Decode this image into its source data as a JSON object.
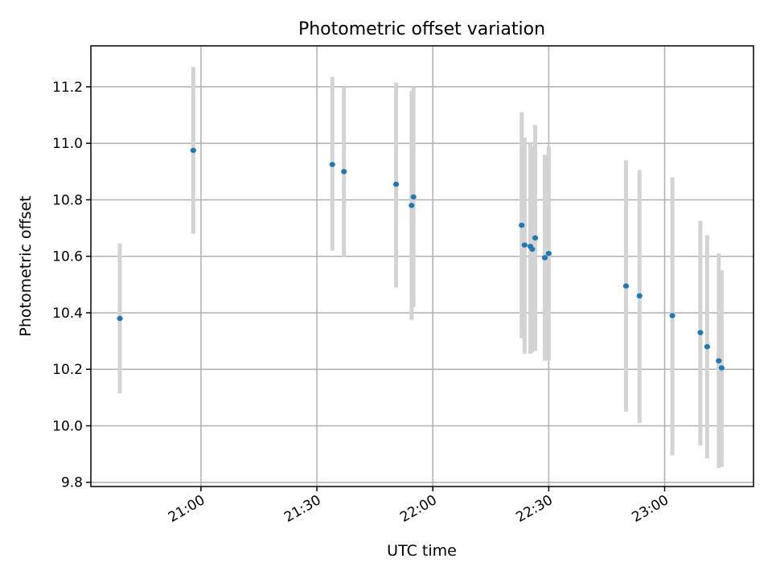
{
  "chart_data": {
    "type": "scatter",
    "title": "Photometric offset variation",
    "xlabel": "UTC time",
    "ylabel": "Photometric offset",
    "x_axis": {
      "type": "time",
      "range": [
        "20:31:30",
        "23:23:00"
      ],
      "ticks": [
        "21:00",
        "21:30",
        "22:00",
        "22:30",
        "23:00"
      ]
    },
    "y_axis": {
      "range": [
        9.785,
        11.345
      ],
      "ticks": [
        "9.8",
        "10.0",
        "10.2",
        "10.4",
        "10.6",
        "10.8",
        "11.0",
        "11.2"
      ]
    },
    "grid": true,
    "marker_color": "#1f77b4",
    "errorbar_color": "#d3d3d3",
    "points": [
      {
        "t": "20:39:00",
        "y": 10.38,
        "lo": 10.115,
        "hi": 10.645
      },
      {
        "t": "20:58:00",
        "y": 10.975,
        "lo": 10.68,
        "hi": 11.27
      },
      {
        "t": "21:34:00",
        "y": 10.925,
        "lo": 10.62,
        "hi": 11.235
      },
      {
        "t": "21:37:00",
        "y": 10.9,
        "lo": 10.6,
        "hi": 11.2
      },
      {
        "t": "21:50:30",
        "y": 10.855,
        "lo": 10.49,
        "hi": 11.215
      },
      {
        "t": "21:54:30",
        "y": 10.78,
        "lo": 10.375,
        "hi": 11.185
      },
      {
        "t": "21:55:00",
        "y": 10.81,
        "lo": 10.42,
        "hi": 11.2
      },
      {
        "t": "22:23:00",
        "y": 10.71,
        "lo": 10.31,
        "hi": 11.11
      },
      {
        "t": "22:23:45",
        "y": 10.64,
        "lo": 10.255,
        "hi": 11.02
      },
      {
        "t": "22:25:15",
        "y": 10.635,
        "lo": 10.255,
        "hi": 11.0
      },
      {
        "t": "22:25:45",
        "y": 10.625,
        "lo": 10.26,
        "hi": 10.99
      },
      {
        "t": "22:26:30",
        "y": 10.665,
        "lo": 10.265,
        "hi": 11.065
      },
      {
        "t": "22:29:00",
        "y": 10.595,
        "lo": 10.23,
        "hi": 10.96
      },
      {
        "t": "22:30:00",
        "y": 10.61,
        "lo": 10.23,
        "hi": 10.99
      },
      {
        "t": "22:50:00",
        "y": 10.495,
        "lo": 10.05,
        "hi": 10.94
      },
      {
        "t": "22:53:30",
        "y": 10.46,
        "lo": 10.01,
        "hi": 10.905
      },
      {
        "t": "23:02:00",
        "y": 10.39,
        "lo": 9.895,
        "hi": 10.88
      },
      {
        "t": "23:09:15",
        "y": 10.33,
        "lo": 9.93,
        "hi": 10.725
      },
      {
        "t": "23:11:00",
        "y": 10.28,
        "lo": 9.885,
        "hi": 10.675
      },
      {
        "t": "23:14:00",
        "y": 10.23,
        "lo": 9.85,
        "hi": 10.61
      },
      {
        "t": "23:14:45",
        "y": 10.205,
        "lo": 9.855,
        "hi": 10.55
      }
    ]
  }
}
